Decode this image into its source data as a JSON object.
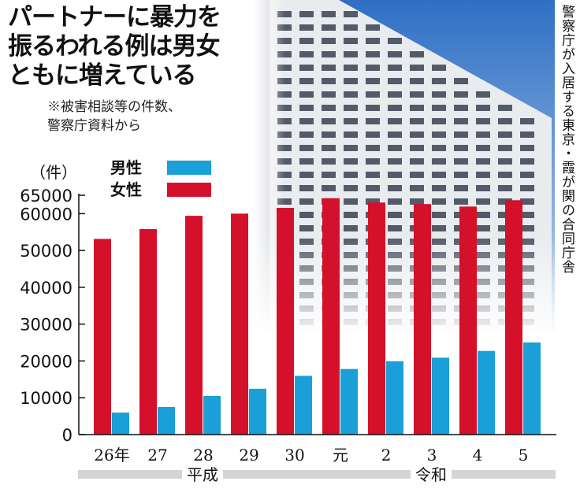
{
  "headline": {
    "line1": "パートナーに暴力を",
    "line2": "振るわれる例は男女",
    "line3": "ともに増えている"
  },
  "note": {
    "line1": "※被害相談等の件数、",
    "line2": "警察庁資料から"
  },
  "photo_caption": "警察庁が入居する東京・霞が関の合同庁舎",
  "colors": {
    "male": "#1a9fd8",
    "female": "#d4102a",
    "era_band": "#d4d4d4",
    "sky_top": "#2f6fc4",
    "sky_bottom": "#bcd6ee",
    "building": "#e9ecef",
    "window": "#3a4250"
  },
  "chart_data": {
    "type": "bar",
    "unit": "（件）",
    "categories": [
      "26年",
      "27",
      "28",
      "29",
      "30",
      "元",
      "2",
      "3",
      "4",
      "5"
    ],
    "eras": [
      {
        "label": "平成",
        "categories": [
          "26年",
          "27",
          "28",
          "29",
          "30"
        ]
      },
      {
        "label": "令和",
        "categories": [
          "元",
          "2",
          "3",
          "4",
          "5"
        ]
      }
    ],
    "series": [
      {
        "name": "男性",
        "color": "#1a9fd8",
        "values": [
          5971,
          7496,
          10496,
          12440,
          15964,
          17815,
          19916,
          20895,
          22716,
          25016
        ]
      },
      {
        "name": "女性",
        "color": "#d4102a",
        "values": [
          53136,
          55813,
          59412,
          60015,
          61575,
          64201,
          63033,
          62612,
          61924,
          63653
        ]
      }
    ],
    "yticks": [
      0,
      10000,
      20000,
      30000,
      40000,
      50000,
      60000,
      65000
    ],
    "ylim": [
      0,
      65000
    ],
    "legend_position": "top-left"
  }
}
